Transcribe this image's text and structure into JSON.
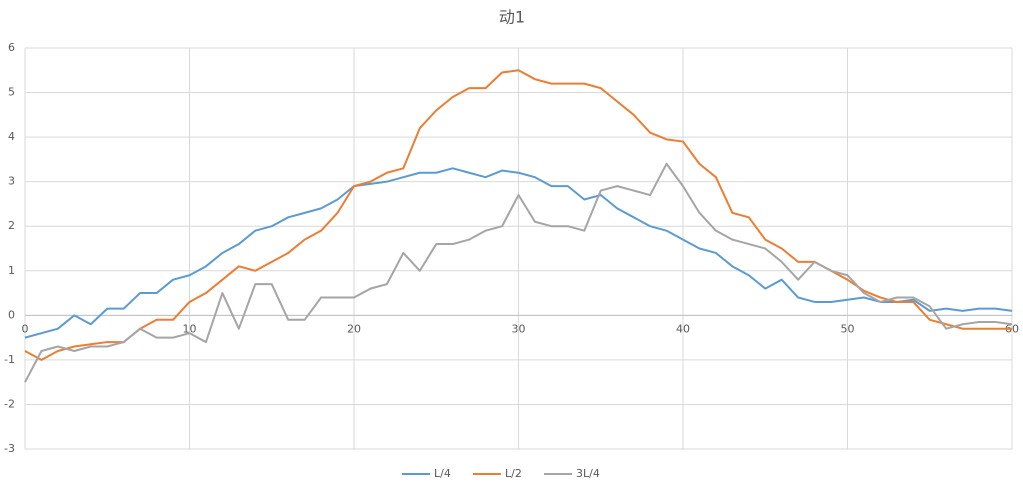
{
  "chart_data": {
    "type": "line",
    "title": "动1",
    "x": [
      0,
      1,
      2,
      3,
      4,
      5,
      6,
      7,
      8,
      9,
      10,
      11,
      12,
      13,
      14,
      15,
      16,
      17,
      18,
      19,
      20,
      21,
      22,
      23,
      24,
      25,
      26,
      27,
      28,
      29,
      30,
      31,
      32,
      33,
      34,
      35,
      36,
      37,
      38,
      39,
      40,
      41,
      42,
      43,
      44,
      45,
      46,
      47,
      48,
      49,
      50,
      51,
      52,
      53,
      54,
      55,
      56,
      57,
      58,
      59,
      60
    ],
    "series": [
      {
        "name": "L/4",
        "color": "#5b9bd5",
        "values": [
          -0.5,
          -0.4,
          -0.3,
          0.0,
          -0.2,
          0.15,
          0.15,
          0.5,
          0.5,
          0.8,
          0.9,
          1.1,
          1.4,
          1.6,
          1.9,
          2.0,
          2.2,
          2.3,
          2.4,
          2.6,
          2.9,
          2.95,
          3.0,
          3.1,
          3.2,
          3.2,
          3.3,
          3.2,
          3.1,
          3.25,
          3.2,
          3.1,
          2.9,
          2.9,
          2.6,
          2.7,
          2.4,
          2.2,
          2.0,
          1.9,
          1.7,
          1.5,
          1.4,
          1.1,
          0.9,
          0.6,
          0.8,
          0.4,
          0.3,
          0.3,
          0.35,
          0.4,
          0.3,
          0.3,
          0.35,
          0.1,
          0.15,
          0.1,
          0.15,
          0.15,
          0.1
        ]
      },
      {
        "name": "L/2",
        "color": "#ed7d31",
        "values": [
          -0.8,
          -1.0,
          -0.8,
          -0.7,
          -0.65,
          -0.6,
          -0.6,
          -0.3,
          -0.1,
          -0.1,
          0.3,
          0.5,
          0.8,
          1.1,
          1.0,
          1.2,
          1.4,
          1.7,
          1.9,
          2.3,
          2.9,
          3.0,
          3.2,
          3.3,
          4.2,
          4.6,
          4.9,
          5.1,
          5.1,
          5.45,
          5.5,
          5.3,
          5.2,
          5.2,
          5.2,
          5.1,
          4.8,
          4.5,
          4.1,
          3.95,
          3.9,
          3.4,
          3.1,
          2.3,
          2.2,
          1.7,
          1.5,
          1.2,
          1.2,
          1.0,
          0.8,
          0.55,
          0.4,
          0.3,
          0.3,
          -0.1,
          -0.2,
          -0.3,
          -0.3,
          -0.3,
          -0.3
        ]
      },
      {
        "name": "3L/4",
        "color": "#a5a5a5",
        "values": [
          -1.5,
          -0.8,
          -0.7,
          -0.8,
          -0.7,
          -0.7,
          -0.6,
          -0.3,
          -0.5,
          -0.5,
          -0.4,
          -0.6,
          0.5,
          -0.3,
          0.7,
          0.7,
          -0.1,
          -0.1,
          0.4,
          0.4,
          0.4,
          0.6,
          0.7,
          1.4,
          1.0,
          1.6,
          1.6,
          1.7,
          1.9,
          2.0,
          2.7,
          2.1,
          2.0,
          2.0,
          1.9,
          2.8,
          2.9,
          2.8,
          2.7,
          3.4,
          2.9,
          2.3,
          1.9,
          1.7,
          1.6,
          1.5,
          1.2,
          0.8,
          1.2,
          1.0,
          0.9,
          0.5,
          0.3,
          0.4,
          0.4,
          0.2,
          -0.3,
          -0.2,
          -0.15,
          -0.15,
          -0.2
        ]
      }
    ],
    "xlim": [
      0,
      60
    ],
    "xticks": [
      0,
      10,
      20,
      30,
      40,
      50,
      60
    ],
    "ylim": [
      -3,
      6
    ],
    "yticks": [
      -3,
      -2,
      -1,
      0,
      1,
      2,
      3,
      4,
      5,
      6
    ],
    "grid": true,
    "legend": "bottom"
  }
}
